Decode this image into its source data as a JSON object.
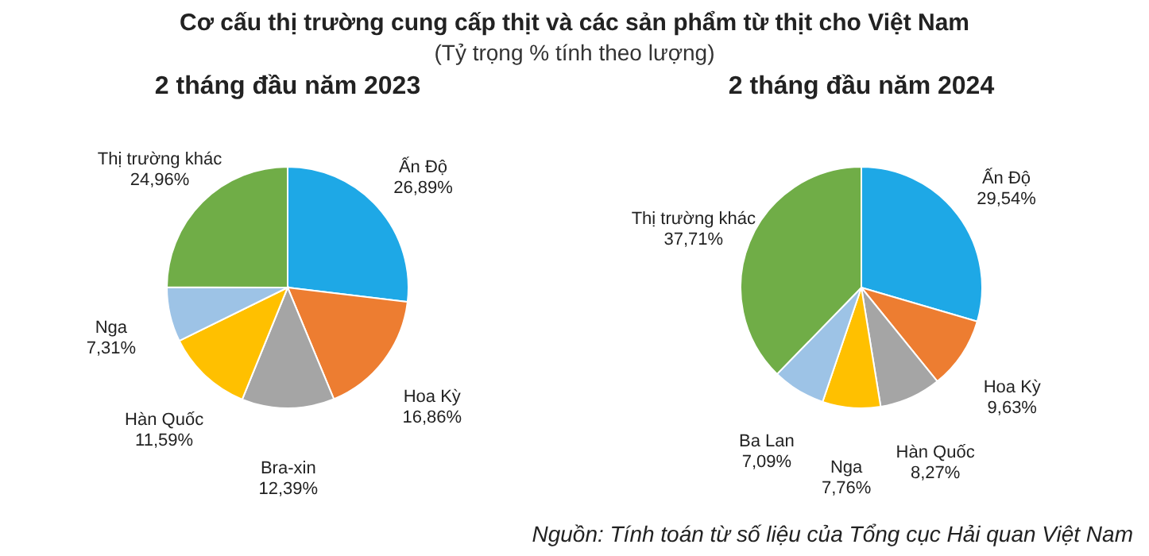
{
  "chart_data": [
    {
      "type": "pie",
      "title": "2 tháng đầu năm 2023",
      "annotations": [
        "Cơ cấu thị trường cung cấp thịt và các sản phẩm từ thịt cho Việt Nam",
        "(Tỷ trọng % tính theo lượng)"
      ],
      "categories": [
        "Ấn Độ",
        "Hoa Kỳ",
        "Bra-xin",
        "Hàn Quốc",
        "Nga",
        "Thị trường khác"
      ],
      "values": [
        26.89,
        16.86,
        12.39,
        11.59,
        7.31,
        24.96
      ],
      "value_labels": [
        "26,89%",
        "16,86%",
        "12,39%",
        "11,59%",
        "7,31%",
        "24,96%"
      ],
      "colors": [
        "#1ea8e6",
        "#ed7d31",
        "#a5a5a5",
        "#ffc000",
        "#9dc3e6",
        "#70ad47"
      ],
      "legend": false
    },
    {
      "type": "pie",
      "title": "2 tháng đầu năm 2024",
      "annotations": [
        "Nguồn: Tính toán từ số liệu của Tổng cục Hải quan Việt Nam"
      ],
      "categories": [
        "Ấn Độ",
        "Hoa Kỳ",
        "Hàn Quốc",
        "Nga",
        "Ba Lan",
        "Thị trường khác"
      ],
      "values": [
        29.54,
        9.63,
        8.27,
        7.76,
        7.09,
        37.71
      ],
      "value_labels": [
        "29,54%",
        "9,63%",
        "8,27%",
        "7,76%",
        "7,09%",
        "37,71%"
      ],
      "colors": [
        "#1ea8e6",
        "#ed7d31",
        "#a5a5a5",
        "#ffc000",
        "#9dc3e6",
        "#70ad47"
      ],
      "legend": false
    }
  ]
}
